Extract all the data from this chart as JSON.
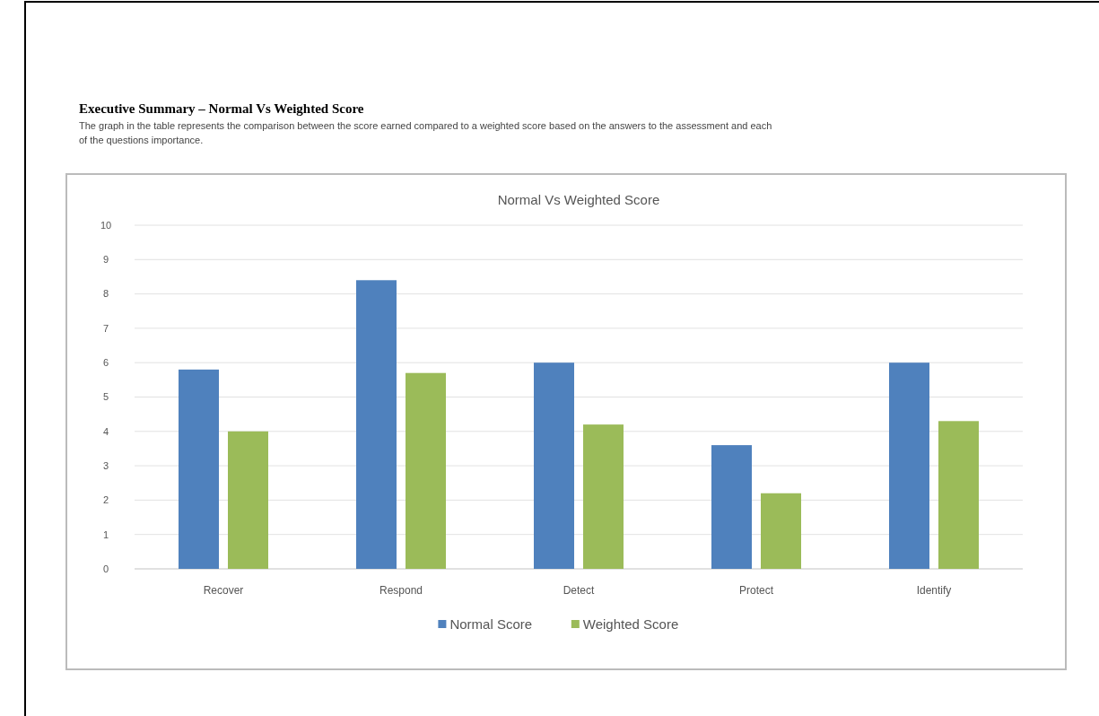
{
  "chart_data": {
    "type": "bar",
    "title": "Executive Summary – Normal Vs Weighted Score",
    "subtitle": "The graph in the table represents the comparison between the score earned compared to a weighted score based on the answers to the assessment and each of the questions importance.",
    "annotations": [
      "Normal Vs Weighted Score"
    ],
    "categories": [
      "Recover",
      "Respond",
      "Detect",
      "Protect",
      "Identify"
    ],
    "series": [
      {
        "name": "Normal Score",
        "color": "#4f81bd",
        "values": [
          5.8,
          8.4,
          6.0,
          3.6,
          6.0
        ]
      },
      {
        "name": "Weighted Score",
        "color": "#9bbb59",
        "values": [
          4.0,
          5.7,
          4.2,
          2.2,
          4.3
        ]
      }
    ],
    "ylim": [
      0,
      10
    ],
    "yticks": [
      0,
      1,
      2,
      3,
      4,
      5,
      6,
      7,
      8,
      9,
      10
    ],
    "grid": "y",
    "legend": "bottom"
  }
}
